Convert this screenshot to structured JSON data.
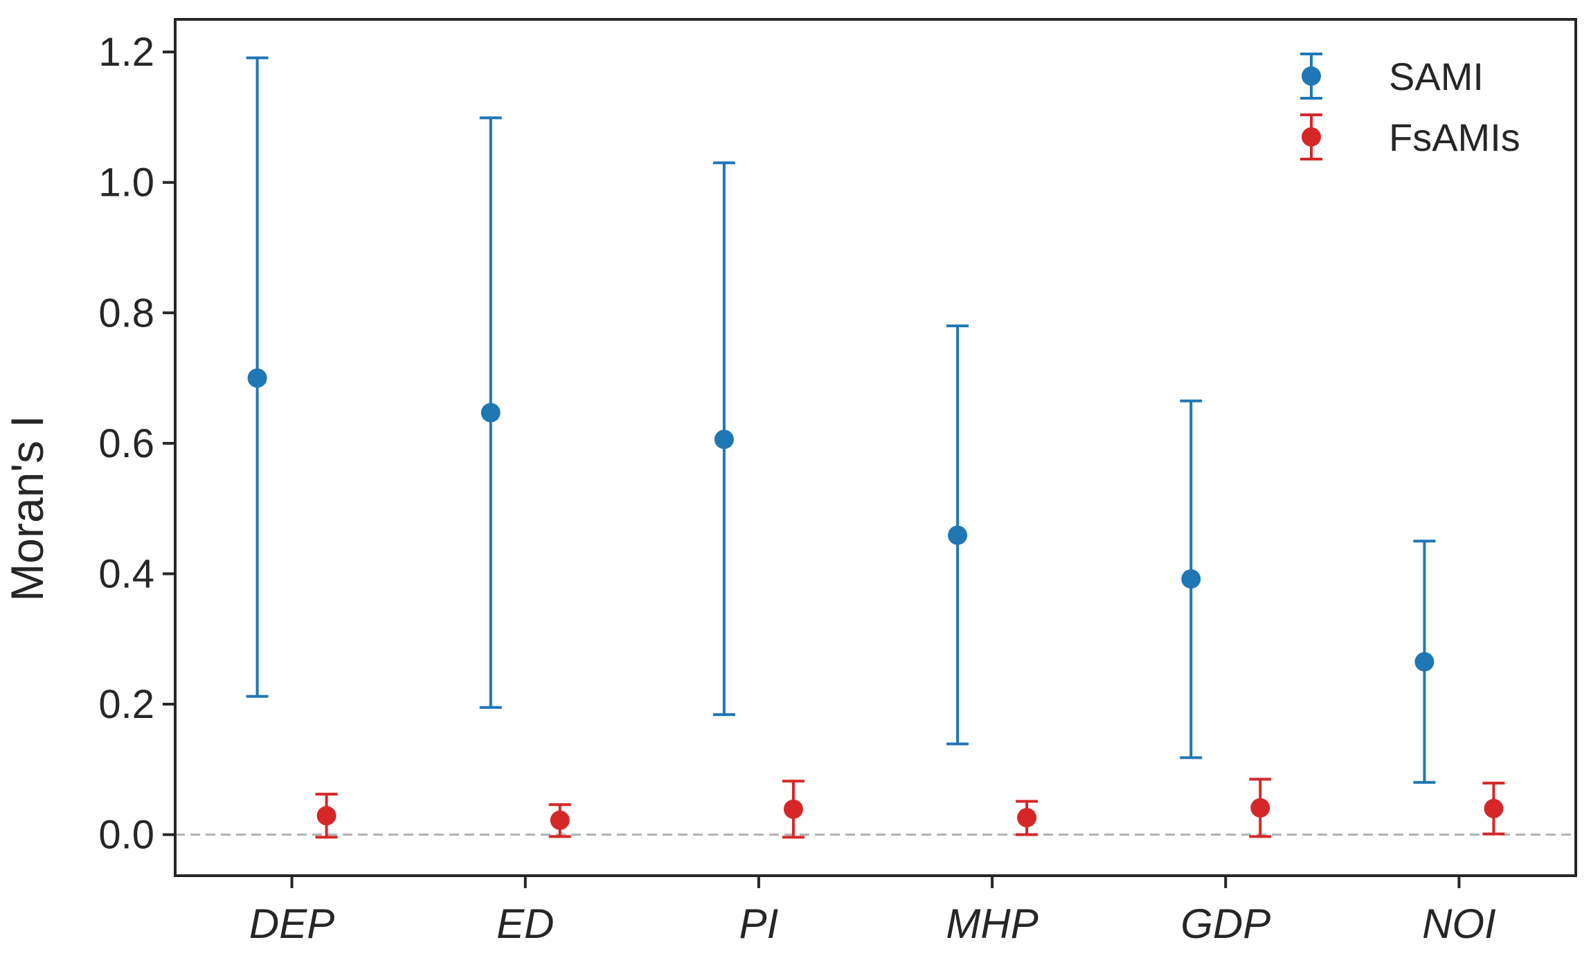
{
  "chart_data": {
    "type": "scatter",
    "categories": [
      "DEP",
      "ED",
      "PI",
      "MHP",
      "GDP",
      "NOI"
    ],
    "ylabel": "Moran's I",
    "xlabel": "",
    "ylim": [
      -0.063,
      1.25
    ],
    "yticks": [
      "0.0",
      "0.2",
      "0.4",
      "0.6",
      "0.8",
      "1.0",
      "1.2"
    ],
    "reference_line": 0.0,
    "grid": false,
    "legend_position": "top-right",
    "series": [
      {
        "name": "SAMI",
        "color": "#1f77b4",
        "values": [
          0.7,
          0.647,
          0.606,
          0.459,
          0.392,
          0.265
        ],
        "lower": [
          0.212,
          0.195,
          0.184,
          0.139,
          0.118,
          0.08
        ],
        "upper": [
          1.191,
          1.099,
          1.03,
          0.78,
          0.665,
          0.45
        ]
      },
      {
        "name": "FsAMIs",
        "color": "#d62728",
        "values": [
          0.029,
          0.022,
          0.039,
          0.026,
          0.041,
          0.04
        ],
        "lower": [
          -0.004,
          -0.003,
          -0.004,
          0.0,
          -0.003,
          0.001
        ],
        "upper": [
          0.062,
          0.046,
          0.082,
          0.051,
          0.085,
          0.079
        ]
      }
    ]
  }
}
